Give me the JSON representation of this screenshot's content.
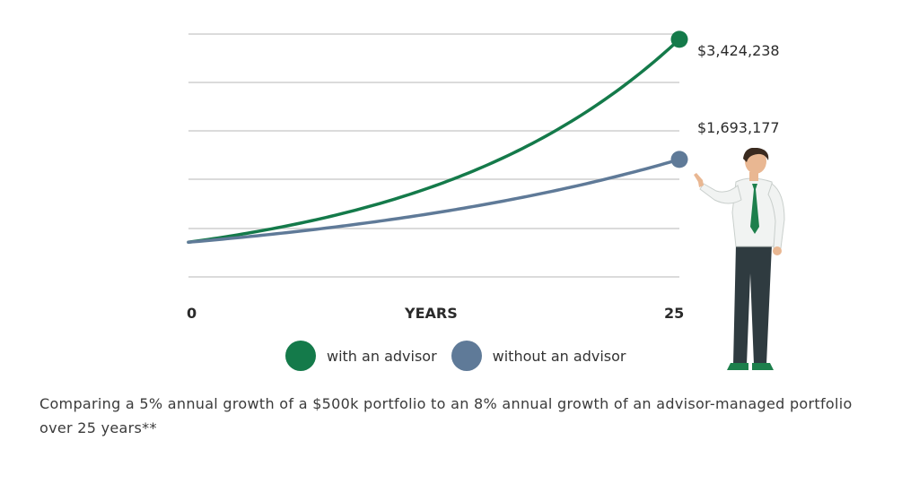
{
  "chart_data": {
    "type": "line",
    "title": "",
    "xlabel": "YEARS",
    "ylabel": "",
    "x": [
      0,
      5,
      10,
      15,
      20,
      25
    ],
    "xlim": [
      0,
      25
    ],
    "ylim": [
      0,
      3500000
    ],
    "x_tick_labels": [
      "0",
      "25"
    ],
    "grid": true,
    "legend_position": "bottom",
    "series": [
      {
        "name": "with an advisor",
        "color": "#147a4a",
        "values": [
          500000,
          734664,
          1079462,
          1586085,
          2330479,
          3424238
        ],
        "end_label": "$3,424,238"
      },
      {
        "name": "without an advisor",
        "color": "#5f7a98",
        "values": [
          500000,
          638141,
          814447,
          1039464,
          1326649,
          1693177
        ],
        "end_label": "$1,693,177"
      }
    ]
  },
  "caption": "Comparing a 5% annual growth of a $500k portfolio to an 8% annual growth of an advisor-managed portfolio over 25 years**",
  "figure_icon": "advisor-person-icon"
}
